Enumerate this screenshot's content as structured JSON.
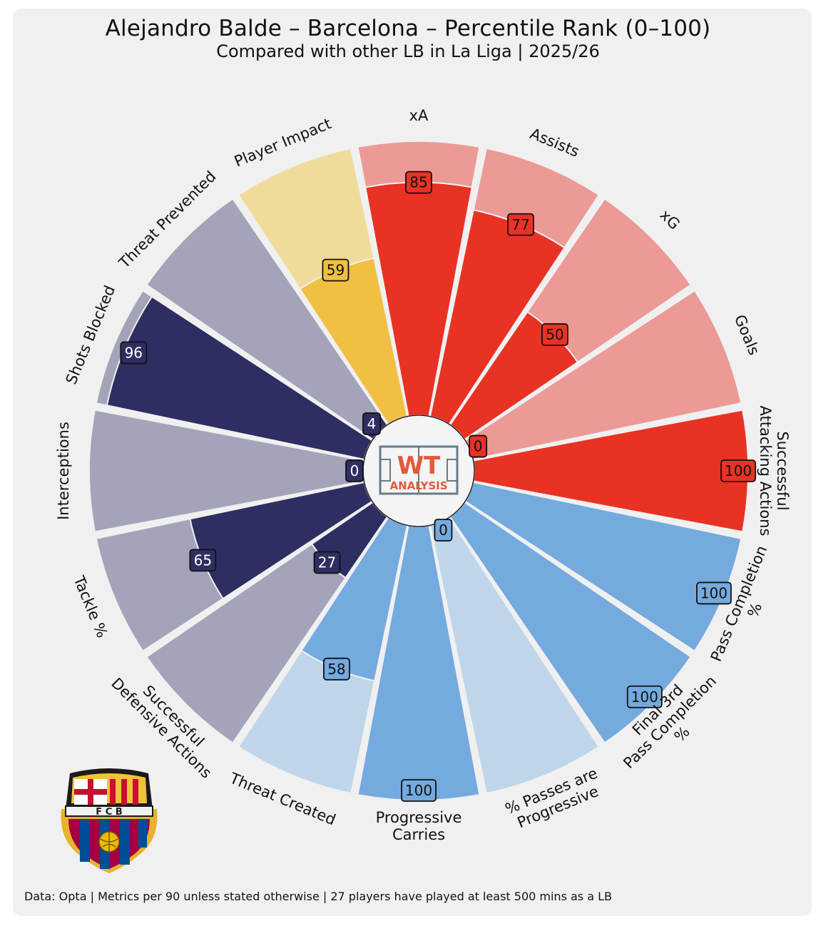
{
  "title": "Alejandro Balde – Barcelona – Percentile Rank (0–100)",
  "subtitle": "Compared with other LB in La Liga | 2025/26",
  "footer": "Data: Opta | Metrics per 90 unless stated otherwise | 27 players have played at least 500 mins as a LB",
  "logo": {
    "text_top": "WT",
    "text_bottom": "ANALYSIS"
  },
  "crest": {
    "letters": "F C B"
  },
  "colors": {
    "attacking_full": "#e83224",
    "attacking_bg": "#eb9a96",
    "passing_full": "#74aade",
    "passing_bg": "#bfd6ea",
    "defending_full": "#2f2e62",
    "defending_bg": "#a3a3b9",
    "impact_full": "#f1bf42",
    "impact_bg": "#f0dc9a"
  },
  "chart_data": {
    "type": "radar",
    "title": "Alejandro Balde – Barcelona – Percentile Rank (0–100)",
    "subtitle": "Compared with other LB in La Liga | 2025/26",
    "range": [
      0,
      100
    ],
    "categories": [
      {
        "label": "xA",
        "value": 85,
        "group": "attacking"
      },
      {
        "label": "Assists",
        "value": 77,
        "group": "attacking"
      },
      {
        "label": "xG",
        "value": 50,
        "group": "attacking"
      },
      {
        "label": "Goals",
        "value": 0,
        "group": "attacking"
      },
      {
        "label": "Successful\nAttacking Actions",
        "value": 100,
        "group": "attacking"
      },
      {
        "label": "Pass Completion\n%",
        "value": 100,
        "group": "passing"
      },
      {
        "label": "Final 3rd\nPass Completion\n%",
        "value": 100,
        "group": "passing"
      },
      {
        "label": "% Passes are\nProgressive",
        "value": 0,
        "group": "passing"
      },
      {
        "label": "Progressive\nCarries",
        "value": 100,
        "group": "passing"
      },
      {
        "label": "Threat Created",
        "value": 58,
        "group": "passing"
      },
      {
        "label": "Successful\nDefensive Actions",
        "value": 27,
        "group": "defending"
      },
      {
        "label": "Tackle %",
        "value": 65,
        "group": "defending"
      },
      {
        "label": "Interceptions",
        "value": 0,
        "group": "defending"
      },
      {
        "label": "Shots Blocked",
        "value": 96,
        "group": "defending"
      },
      {
        "label": "Threat Prevented",
        "value": 4,
        "group": "defending"
      },
      {
        "label": "Player Impact",
        "value": 59,
        "group": "impact"
      }
    ]
  }
}
